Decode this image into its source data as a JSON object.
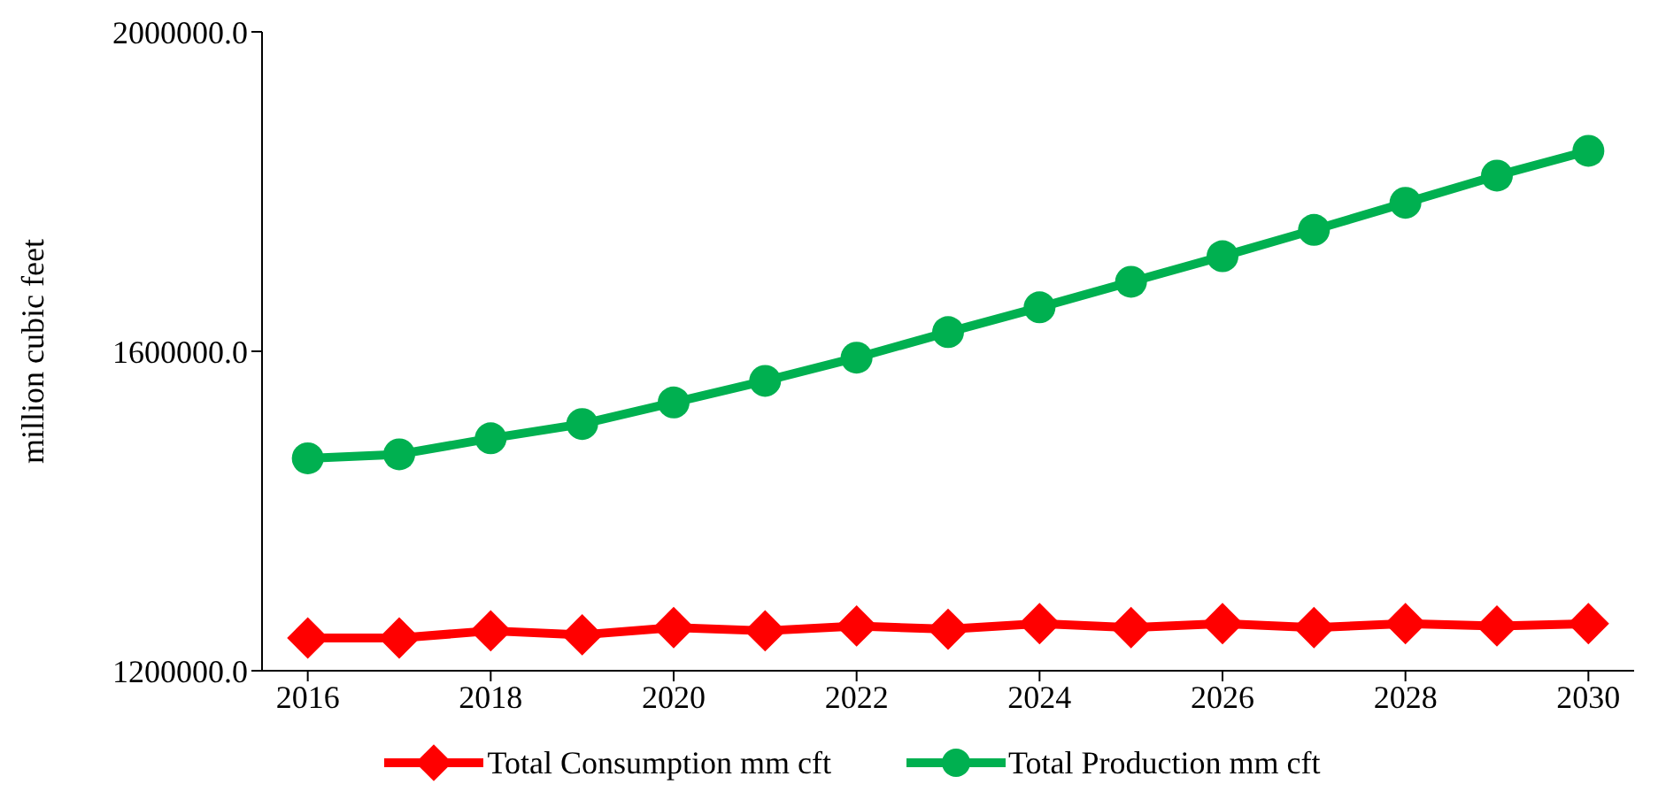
{
  "chart_data": {
    "type": "line",
    "ylabel": "million cubic feet",
    "x": [
      2016,
      2017,
      2018,
      2019,
      2020,
      2021,
      2022,
      2023,
      2024,
      2025,
      2026,
      2027,
      2028,
      2029,
      2030
    ],
    "series": [
      {
        "name": "Total Consumption mm cft",
        "color": "#ff0000",
        "marker": "diamond",
        "values": [
          1241000,
          1241000,
          1250000,
          1245000,
          1254000,
          1250000,
          1256000,
          1252000,
          1259000,
          1254000,
          1259000,
          1254000,
          1259000,
          1256000,
          1259000
        ]
      },
      {
        "name": "Total Production mm cft",
        "color": "#00b050",
        "marker": "circle",
        "values": [
          1466000,
          1471000,
          1491000,
          1509000,
          1536000,
          1563000,
          1592000,
          1624000,
          1655000,
          1687000,
          1719000,
          1752000,
          1786000,
          1820000,
          1851000
        ]
      }
    ],
    "xlim": [
      2015.5,
      2030.5
    ],
    "xticks": [
      2016,
      2018,
      2020,
      2022,
      2024,
      2026,
      2028,
      2030
    ],
    "ylim": [
      1200000,
      2000000
    ],
    "yticks": [
      {
        "value": 1200000,
        "label": "1200000.0"
      },
      {
        "value": 1600000,
        "label": "1600000.0"
      },
      {
        "value": 2000000,
        "label": "2000000.0"
      }
    ],
    "grid": false,
    "legend": "bottom"
  }
}
